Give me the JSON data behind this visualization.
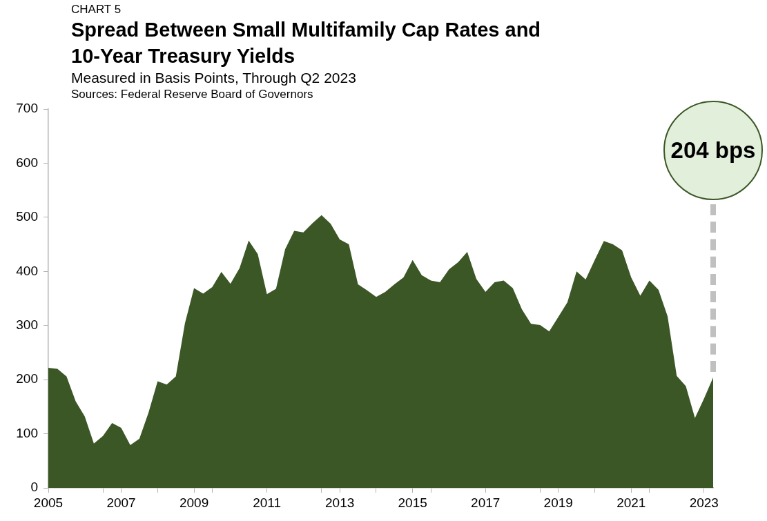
{
  "chart_data": {
    "type": "area",
    "title": "Spread Between Small Multifamily Cap Rates and 10-Year Treasury Yields",
    "subtitle": "Measured in Basis Points, Through Q2 2023",
    "annotations": [
      "CHART 5",
      "Sources: Federal Reserve Board of Governors",
      "204 bps"
    ],
    "x": [
      2005,
      2005.25,
      2005.5,
      2005.75,
      2006,
      2006.25,
      2006.5,
      2006.75,
      2007,
      2007.25,
      2007.5,
      2007.75,
      2008,
      2008.25,
      2008.5,
      2008.75,
      2009,
      2009.25,
      2009.5,
      2009.75,
      2010,
      2010.25,
      2010.5,
      2010.75,
      2011,
      2011.25,
      2011.5,
      2011.75,
      2012,
      2012.25,
      2012.5,
      2012.75,
      2013,
      2013.25,
      2013.5,
      2013.75,
      2014,
      2014.25,
      2014.5,
      2014.75,
      2015,
      2015.25,
      2015.5,
      2015.75,
      2016,
      2016.25,
      2016.5,
      2016.75,
      2017,
      2017.25,
      2017.5,
      2017.75,
      2018,
      2018.25,
      2018.5,
      2018.75,
      2019,
      2019.25,
      2019.5,
      2019.75,
      2020,
      2020.25,
      2020.5,
      2020.75,
      2021,
      2021.25,
      2021.5,
      2021.75,
      2022,
      2022.25,
      2022.5,
      2022.75,
      2023,
      2023.25
    ],
    "series": [
      {
        "color": "#3b5726",
        "values": [
          222,
          220,
          206,
          160,
          132,
          82,
          96,
          120,
          111,
          79,
          91,
          139,
          197,
          191,
          206,
          304,
          369,
          359,
          371,
          399,
          377,
          406,
          457,
          432,
          358,
          368,
          441,
          475,
          472,
          489,
          504,
          488,
          459,
          450,
          376,
          365,
          353,
          362,
          376,
          389,
          421,
          393,
          383,
          380,
          404,
          417,
          436,
          386,
          362,
          380,
          383,
          369,
          330,
          303,
          301,
          289,
          316,
          343,
          400,
          385,
          421,
          456,
          450,
          439,
          389,
          355,
          383,
          366,
          317,
          207,
          188,
          129,
          165,
          204
        ]
      }
    ],
    "xlim": [
      2005,
      2023.25
    ],
    "xticks": [
      2005,
      {
        "value": 2006.5,
        "label": null
      },
      {
        "value": 2007,
        "label": "2007"
      },
      {
        "value": 2008,
        "label": null
      },
      {
        "value": 2009,
        "label": "2009"
      },
      {
        "value": 2009.5,
        "label": null
      },
      2011,
      {
        "value": 2012.5,
        "label": null
      },
      {
        "value": 2013,
        "label": "2013"
      },
      {
        "value": 2014,
        "label": null
      },
      {
        "value": 2015,
        "label": "2015"
      },
      {
        "value": 2015.5,
        "label": null
      },
      2017,
      {
        "value": 2018.5,
        "label": null
      },
      {
        "value": 2019,
        "label": "2019"
      },
      {
        "value": 2020,
        "label": null
      },
      {
        "value": 2021,
        "label": "2021"
      },
      {
        "value": 2021.5,
        "label": null
      },
      2023
    ],
    "ylim": [
      0,
      700
    ],
    "yticks": [
      0,
      100,
      200,
      300,
      400,
      500,
      600,
      700
    ],
    "grid": false,
    "legend": false
  }
}
